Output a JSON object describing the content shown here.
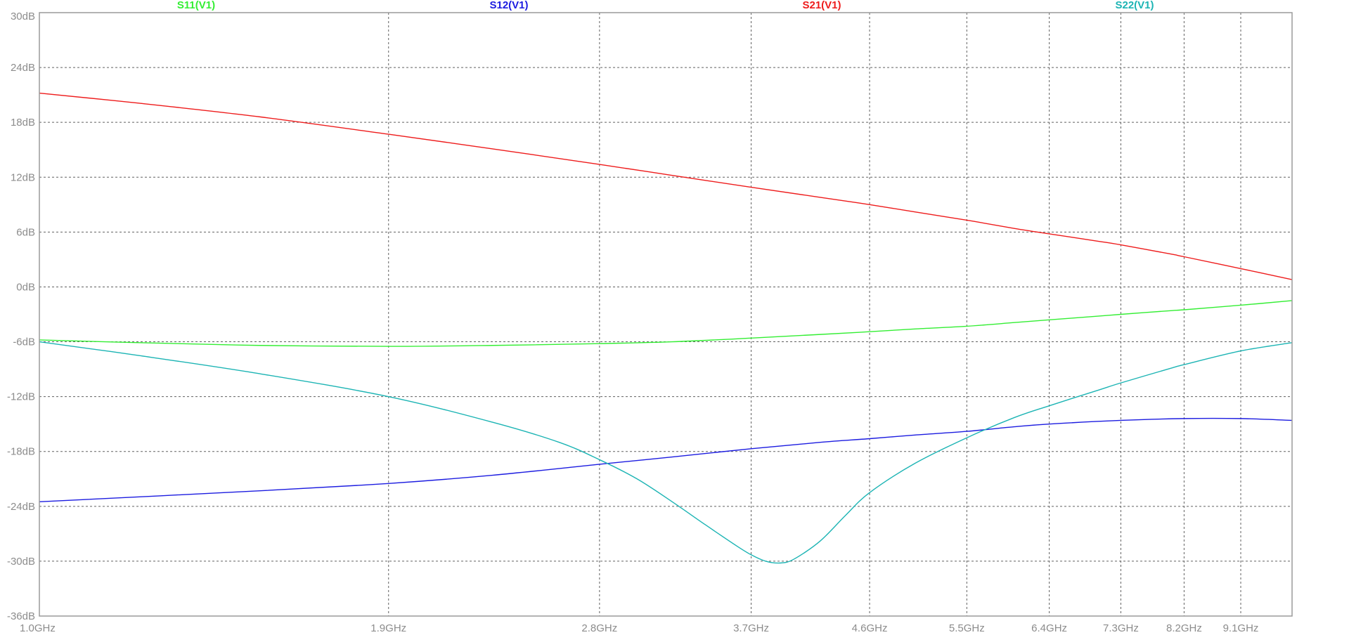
{
  "chart_data": {
    "type": "line",
    "x_scale": "log",
    "x_unit": "GHz",
    "xlim": [
      1.0,
      10.0
    ],
    "ylim": [
      -36,
      30
    ],
    "grid": true,
    "y_ticks": [
      {
        "value": 30,
        "label": "30dB"
      },
      {
        "value": 24,
        "label": "24dB"
      },
      {
        "value": 18,
        "label": "18dB"
      },
      {
        "value": 12,
        "label": "12dB"
      },
      {
        "value": 6,
        "label": "6dB"
      },
      {
        "value": 0,
        "label": "0dB"
      },
      {
        "value": -6,
        "label": "-6dB"
      },
      {
        "value": -12,
        "label": "-12dB"
      },
      {
        "value": -18,
        "label": "-18dB"
      },
      {
        "value": -24,
        "label": "-24dB"
      },
      {
        "value": -30,
        "label": "-30dB"
      },
      {
        "value": -36,
        "label": "-36dB"
      }
    ],
    "x_ticks": [
      {
        "value": 1.0,
        "label": "1.0GHz"
      },
      {
        "value": 1.9,
        "label": "1.9GHz"
      },
      {
        "value": 2.8,
        "label": "2.8GHz"
      },
      {
        "value": 3.7,
        "label": "3.7GHz"
      },
      {
        "value": 4.6,
        "label": "4.6GHz"
      },
      {
        "value": 5.5,
        "label": "5.5GHz"
      },
      {
        "value": 6.4,
        "label": "6.4GHz"
      },
      {
        "value": 7.3,
        "label": "7.3GHz"
      },
      {
        "value": 8.2,
        "label": "8.2GHz"
      },
      {
        "value": 9.1,
        "label": "9.1GHz"
      }
    ],
    "series": [
      {
        "name": "S11(V1)",
        "color": "#33ee33",
        "x": [
          1.0,
          1.2,
          1.5,
          1.9,
          2.3,
          2.8,
          3.2,
          3.7,
          4.2,
          4.6,
          5.0,
          5.5,
          6.0,
          6.4,
          7.0,
          7.3,
          8.0,
          8.2,
          9.1,
          10.0
        ],
        "y": [
          -5.8,
          -6.1,
          -6.4,
          -6.5,
          -6.4,
          -6.2,
          -6.0,
          -5.6,
          -5.2,
          -4.9,
          -4.6,
          -4.3,
          -3.9,
          -3.6,
          -3.2,
          -3.0,
          -2.6,
          -2.5,
          -2.0,
          -1.5
        ]
      },
      {
        "name": "S12(V1)",
        "color": "#1c1ce0",
        "x": [
          1.0,
          1.5,
          1.9,
          2.3,
          2.8,
          3.2,
          3.7,
          4.2,
          4.6,
          5.0,
          5.5,
          6.0,
          6.4,
          7.3,
          8.2,
          9.1,
          10.0
        ],
        "y": [
          -23.5,
          -22.3,
          -21.5,
          -20.6,
          -19.4,
          -18.6,
          -17.7,
          -17.0,
          -16.6,
          -16.2,
          -15.8,
          -15.3,
          -15.0,
          -14.6,
          -14.4,
          -14.4,
          -14.6
        ]
      },
      {
        "name": "S21(V1)",
        "color": "#ee1c1c",
        "x": [
          1.0,
          1.2,
          1.5,
          1.9,
          2.3,
          2.8,
          3.2,
          3.7,
          4.2,
          4.6,
          5.0,
          5.5,
          6.0,
          6.4,
          7.0,
          7.3,
          8.0,
          8.2,
          9.1,
          10.0
        ],
        "y": [
          21.2,
          20.1,
          18.6,
          16.7,
          15.1,
          13.4,
          12.2,
          10.9,
          9.8,
          9.0,
          8.2,
          7.3,
          6.4,
          5.8,
          5.0,
          4.6,
          3.6,
          3.3,
          2.0,
          0.8
        ]
      },
      {
        "name": "S22(V1)",
        "color": "#1cb4b4",
        "x": [
          1.0,
          1.2,
          1.5,
          1.9,
          2.3,
          2.6,
          2.8,
          3.0,
          3.2,
          3.4,
          3.6,
          3.7,
          3.8,
          3.9,
          4.0,
          4.2,
          4.4,
          4.6,
          5.0,
          5.5,
          6.0,
          6.4,
          7.0,
          7.3,
          8.0,
          8.2,
          9.1,
          10.0
        ],
        "y": [
          -6.0,
          -7.5,
          -9.5,
          -12.0,
          -14.8,
          -17.0,
          -18.9,
          -21.0,
          -23.5,
          -26.0,
          -28.3,
          -29.3,
          -30.0,
          -30.2,
          -29.8,
          -27.8,
          -25.0,
          -22.5,
          -19.3,
          -16.5,
          -14.3,
          -13.0,
          -11.3,
          -10.5,
          -8.9,
          -8.5,
          -7.0,
          -6.1
        ]
      }
    ]
  }
}
